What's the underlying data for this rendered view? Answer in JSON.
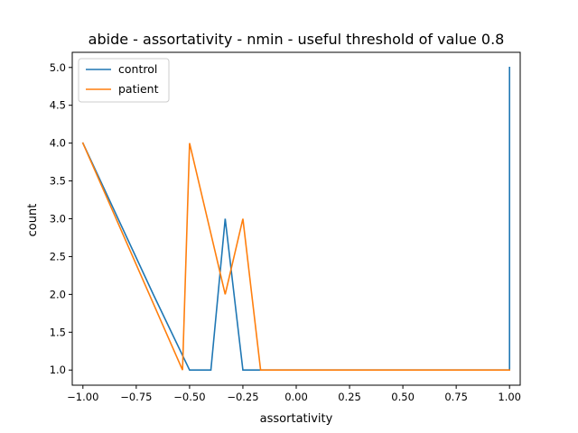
{
  "chart_data": {
    "type": "line",
    "title": "abide - assortativity - nmin - useful threshold of value 0.8",
    "xlabel": "assortativity",
    "ylabel": "count",
    "xlim": [
      -1.05,
      1.05
    ],
    "ylim": [
      0.8,
      5.2
    ],
    "xticks": [
      -1.0,
      -0.75,
      -0.5,
      -0.25,
      0.0,
      0.25,
      0.5,
      0.75,
      1.0
    ],
    "xtick_labels": [
      "−1.00",
      "−0.75",
      "−0.50",
      "−0.25",
      "0.00",
      "0.25",
      "0.50",
      "0.75",
      "1.00"
    ],
    "yticks": [
      1.0,
      1.5,
      2.0,
      2.5,
      3.0,
      3.5,
      4.0,
      4.5,
      5.0
    ],
    "ytick_labels": [
      "1.0",
      "1.5",
      "2.0",
      "2.5",
      "3.0",
      "3.5",
      "4.0",
      "4.5",
      "5.0"
    ],
    "grid": false,
    "legend_position": "top-left",
    "series": [
      {
        "name": "control",
        "color": "#1f77b4",
        "x": [
          -1.0,
          -0.67,
          -0.5,
          -0.4,
          -0.333,
          -0.25,
          -0.167,
          1.0,
          1.0
        ],
        "y": [
          4,
          2,
          1,
          1,
          3,
          1,
          1,
          1,
          5
        ]
      },
      {
        "name": "patient",
        "color": "#ff7f0e",
        "x": [
          -1.0,
          -0.533,
          -0.5,
          -0.333,
          -0.25,
          -0.167,
          1.0
        ],
        "y": [
          4,
          1,
          4,
          2,
          3,
          1,
          1
        ]
      }
    ]
  }
}
